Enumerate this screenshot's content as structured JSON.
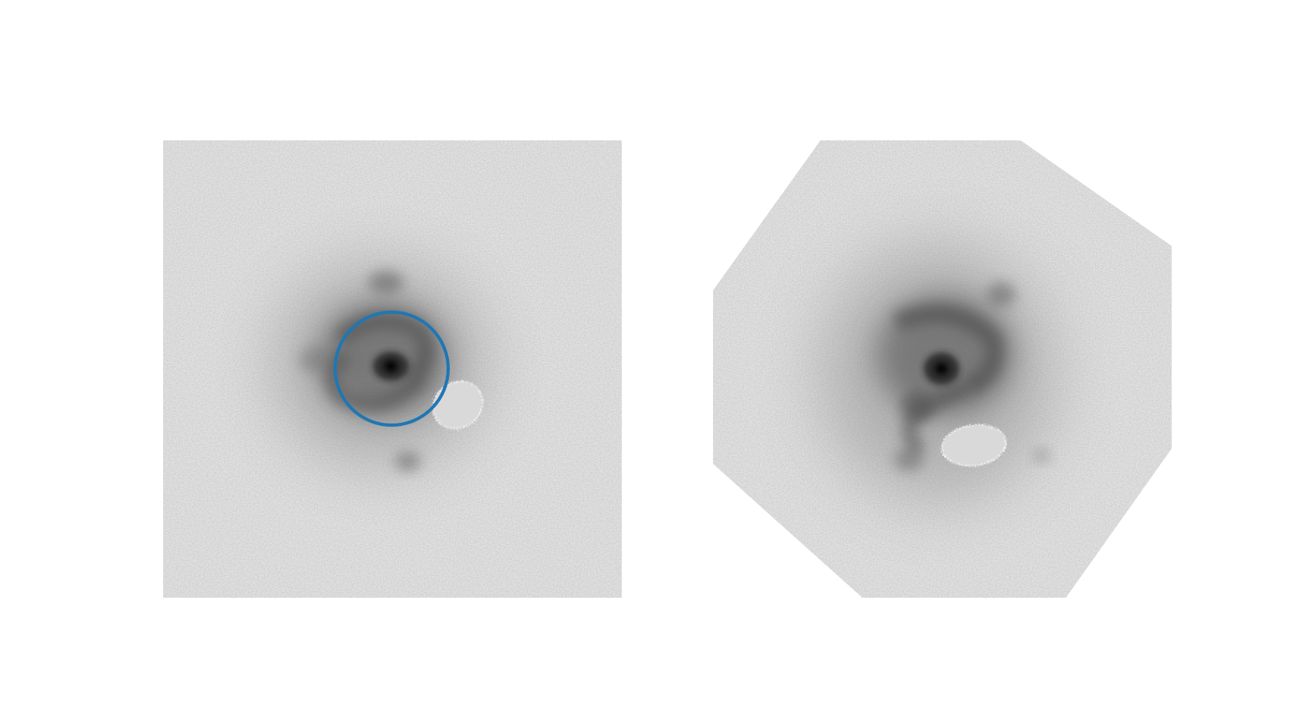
{
  "panels": [
    {
      "id": "panel-left",
      "shape": "square",
      "background_color": "#c9c9c9",
      "core_color": "#000000",
      "masked_region_color": "#d9d9d9",
      "aperture": {
        "shown": true,
        "color": "#1f77b4"
      }
    },
    {
      "id": "panel-right",
      "shape": "octagon",
      "background_color": "#c9c9c9",
      "core_color": "#000000",
      "masked_region_color": "#d9d9d9",
      "aperture": {
        "shown": false
      }
    }
  ]
}
